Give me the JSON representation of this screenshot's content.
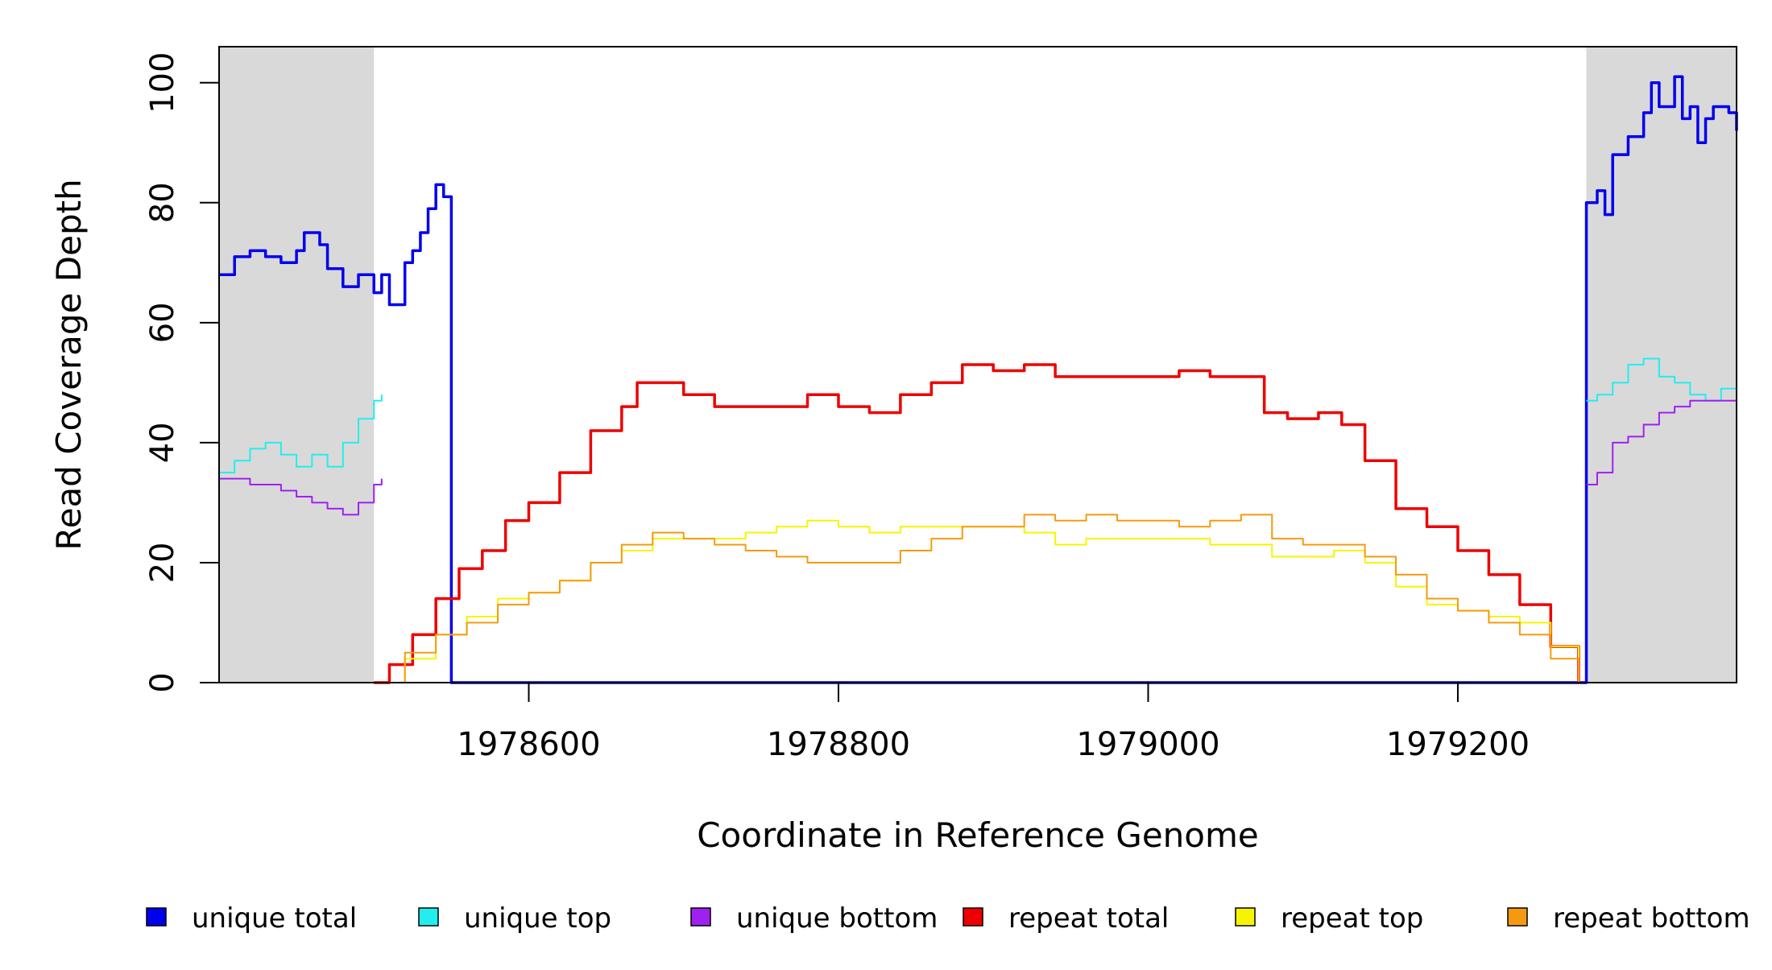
{
  "chart_data": {
    "type": "line",
    "xlabel": "Coordinate in Reference Genome",
    "ylabel": "Read Coverage Depth",
    "xlim": [
      1978400,
      1979380
    ],
    "ylim": [
      0,
      106
    ],
    "xticks": [
      1978600,
      1978800,
      1979000,
      1979200
    ],
    "yticks": [
      0,
      20,
      40,
      60,
      80,
      100
    ],
    "grid": false,
    "shaded_regions": [
      {
        "x": [
          1978400,
          1978500
        ],
        "color": "#d9d9d9"
      },
      {
        "x": [
          1979283,
          1979380
        ],
        "color": "#d9d9d9"
      }
    ],
    "legend": {
      "placement": "bottom",
      "entries": [
        {
          "label": "unique total",
          "color": "#0000ee"
        },
        {
          "label": "unique top",
          "color": "#22eeee"
        },
        {
          "label": "unique bottom",
          "color": "#a020f0"
        },
        {
          "label": "repeat total",
          "color": "#ee0000"
        },
        {
          "label": "repeat top",
          "color": "#f5f500"
        },
        {
          "label": "repeat bottom",
          "color": "#f59a10"
        }
      ]
    },
    "series": [
      {
        "name": "unique total",
        "color": "#0000ee",
        "segments": [
          {
            "x": [
              1978400,
              1978410,
              1978420,
              1978430,
              1978440,
              1978450,
              1978455,
              1978465,
              1978470,
              1978480,
              1978490,
              1978500,
              1978505,
              1978510,
              1978520,
              1978525,
              1978530,
              1978535,
              1978540,
              1978545,
              1978550,
              1978560,
              1978570,
              1978580,
              1978590,
              1978595,
              1978600
            ],
            "y": [
              68,
              71,
              72,
              71,
              70,
              72,
              75,
              73,
              69,
              66,
              68,
              65,
              68,
              63,
              70,
              72,
              75,
              79,
              83,
              81,
              0,
              0,
              0,
              0,
              0,
              0,
              0
            ]
          },
          {
            "x": [
              1978600,
              1978700,
              1978800,
              1978900,
              1979000,
              1979100,
              1979200,
              1979280
            ],
            "y": [
              0,
              0,
              0,
              0,
              0,
              0,
              0,
              0
            ]
          },
          {
            "x": [
              1979280,
              1979283,
              1979290,
              1979295,
              1979300,
              1979310,
              1979320,
              1979325,
              1979330,
              1979335,
              1979340,
              1979345,
              1979350,
              1979355,
              1979360,
              1979365,
              1979370,
              1979375,
              1979380
            ],
            "y": [
              0,
              80,
              82,
              78,
              88,
              91,
              95,
              100,
              96,
              96,
              101,
              94,
              96,
              90,
              94,
              96,
              96,
              95,
              92
            ]
          }
        ]
      },
      {
        "name": "unique top",
        "color": "#22eeee",
        "segments": [
          {
            "x": [
              1978400,
              1978410,
              1978420,
              1978430,
              1978440,
              1978450,
              1978460,
              1978470,
              1978480,
              1978490,
              1978500,
              1978505
            ],
            "y": [
              35,
              37,
              39,
              40,
              38,
              36,
              38,
              36,
              40,
              44,
              47,
              48
            ]
          },
          {
            "x": [
              1979283,
              1979290,
              1979300,
              1979310,
              1979320,
              1979330,
              1979340,
              1979350,
              1979360,
              1979370,
              1979380
            ],
            "y": [
              47,
              48,
              50,
              53,
              54,
              51,
              50,
              48,
              47,
              49,
              48
            ]
          }
        ]
      },
      {
        "name": "unique bottom",
        "color": "#a020f0",
        "segments": [
          {
            "x": [
              1978400,
              1978410,
              1978420,
              1978430,
              1978440,
              1978450,
              1978460,
              1978470,
              1978480,
              1978490,
              1978500,
              1978505
            ],
            "y": [
              34,
              34,
              33,
              33,
              32,
              31,
              30,
              29,
              28,
              30,
              33,
              34
            ]
          },
          {
            "x": [
              1979283,
              1979290,
              1979300,
              1979310,
              1979320,
              1979330,
              1979340,
              1979350,
              1979360,
              1979370,
              1979380
            ],
            "y": [
              33,
              35,
              40,
              41,
              43,
              45,
              46,
              47,
              47,
              47,
              46
            ]
          }
        ]
      },
      {
        "name": "repeat total",
        "color": "#ee0000",
        "segments": [
          {
            "x": [
              1978500,
              1978510,
              1978525,
              1978540,
              1978555,
              1978570,
              1978585,
              1978600,
              1978620,
              1978640,
              1978660,
              1978670,
              1978680,
              1978700,
              1978720,
              1978740,
              1978760,
              1978780,
              1978800,
              1978820,
              1978840,
              1978860,
              1978880,
              1978900,
              1978920,
              1978940,
              1978960,
              1978980,
              1979000,
              1979020,
              1979040,
              1979060,
              1979075,
              1979090,
              1979110,
              1979125,
              1979140,
              1979160,
              1979180,
              1979200,
              1979220,
              1979240,
              1979260,
              1979278
            ],
            "y": [
              0,
              3,
              8,
              14,
              19,
              22,
              27,
              30,
              35,
              42,
              46,
              50,
              50,
              48,
              46,
              46,
              46,
              48,
              46,
              45,
              48,
              50,
              53,
              52,
              53,
              51,
              51,
              51,
              51,
              52,
              51,
              51,
              45,
              44,
              45,
              43,
              37,
              29,
              26,
              22,
              18,
              13,
              6,
              0
            ]
          }
        ]
      },
      {
        "name": "repeat top",
        "color": "#f5f500",
        "segments": [
          {
            "x": [
              1978500,
              1978520,
              1978540,
              1978560,
              1978580,
              1978600,
              1978620,
              1978640,
              1978660,
              1978680,
              1978700,
              1978720,
              1978740,
              1978760,
              1978780,
              1978800,
              1978820,
              1978840,
              1978860,
              1978880,
              1978900,
              1978920,
              1978940,
              1978960,
              1978980,
              1979000,
              1979020,
              1979040,
              1979060,
              1979080,
              1979100,
              1979120,
              1979140,
              1979160,
              1979180,
              1979200,
              1979220,
              1979240,
              1979260,
              1979278
            ],
            "y": [
              0,
              4,
              8,
              11,
              14,
              15,
              17,
              20,
              22,
              24,
              24,
              24,
              25,
              26,
              27,
              26,
              25,
              26,
              26,
              26,
              26,
              25,
              23,
              24,
              24,
              24,
              24,
              23,
              23,
              21,
              21,
              22,
              20,
              16,
              13,
              12,
              11,
              10,
              6,
              0
            ]
          }
        ]
      },
      {
        "name": "repeat bottom",
        "color": "#f59a10",
        "segments": [
          {
            "x": [
              1978500,
              1978520,
              1978540,
              1978560,
              1978580,
              1978600,
              1978620,
              1978640,
              1978660,
              1978680,
              1978700,
              1978720,
              1978740,
              1978760,
              1978780,
              1978800,
              1978820,
              1978840,
              1978860,
              1978880,
              1978900,
              1978920,
              1978940,
              1978960,
              1978980,
              1979000,
              1979020,
              1979040,
              1979060,
              1979080,
              1979100,
              1979120,
              1979140,
              1979160,
              1979180,
              1979200,
              1979220,
              1979240,
              1979260,
              1979278
            ],
            "y": [
              0,
              5,
              8,
              10,
              13,
              15,
              17,
              20,
              23,
              25,
              24,
              23,
              22,
              21,
              20,
              20,
              20,
              22,
              24,
              26,
              26,
              28,
              27,
              28,
              27,
              27,
              26,
              27,
              28,
              24,
              23,
              23,
              21,
              18,
              14,
              12,
              10,
              8,
              4,
              0
            ]
          }
        ]
      }
    ]
  }
}
